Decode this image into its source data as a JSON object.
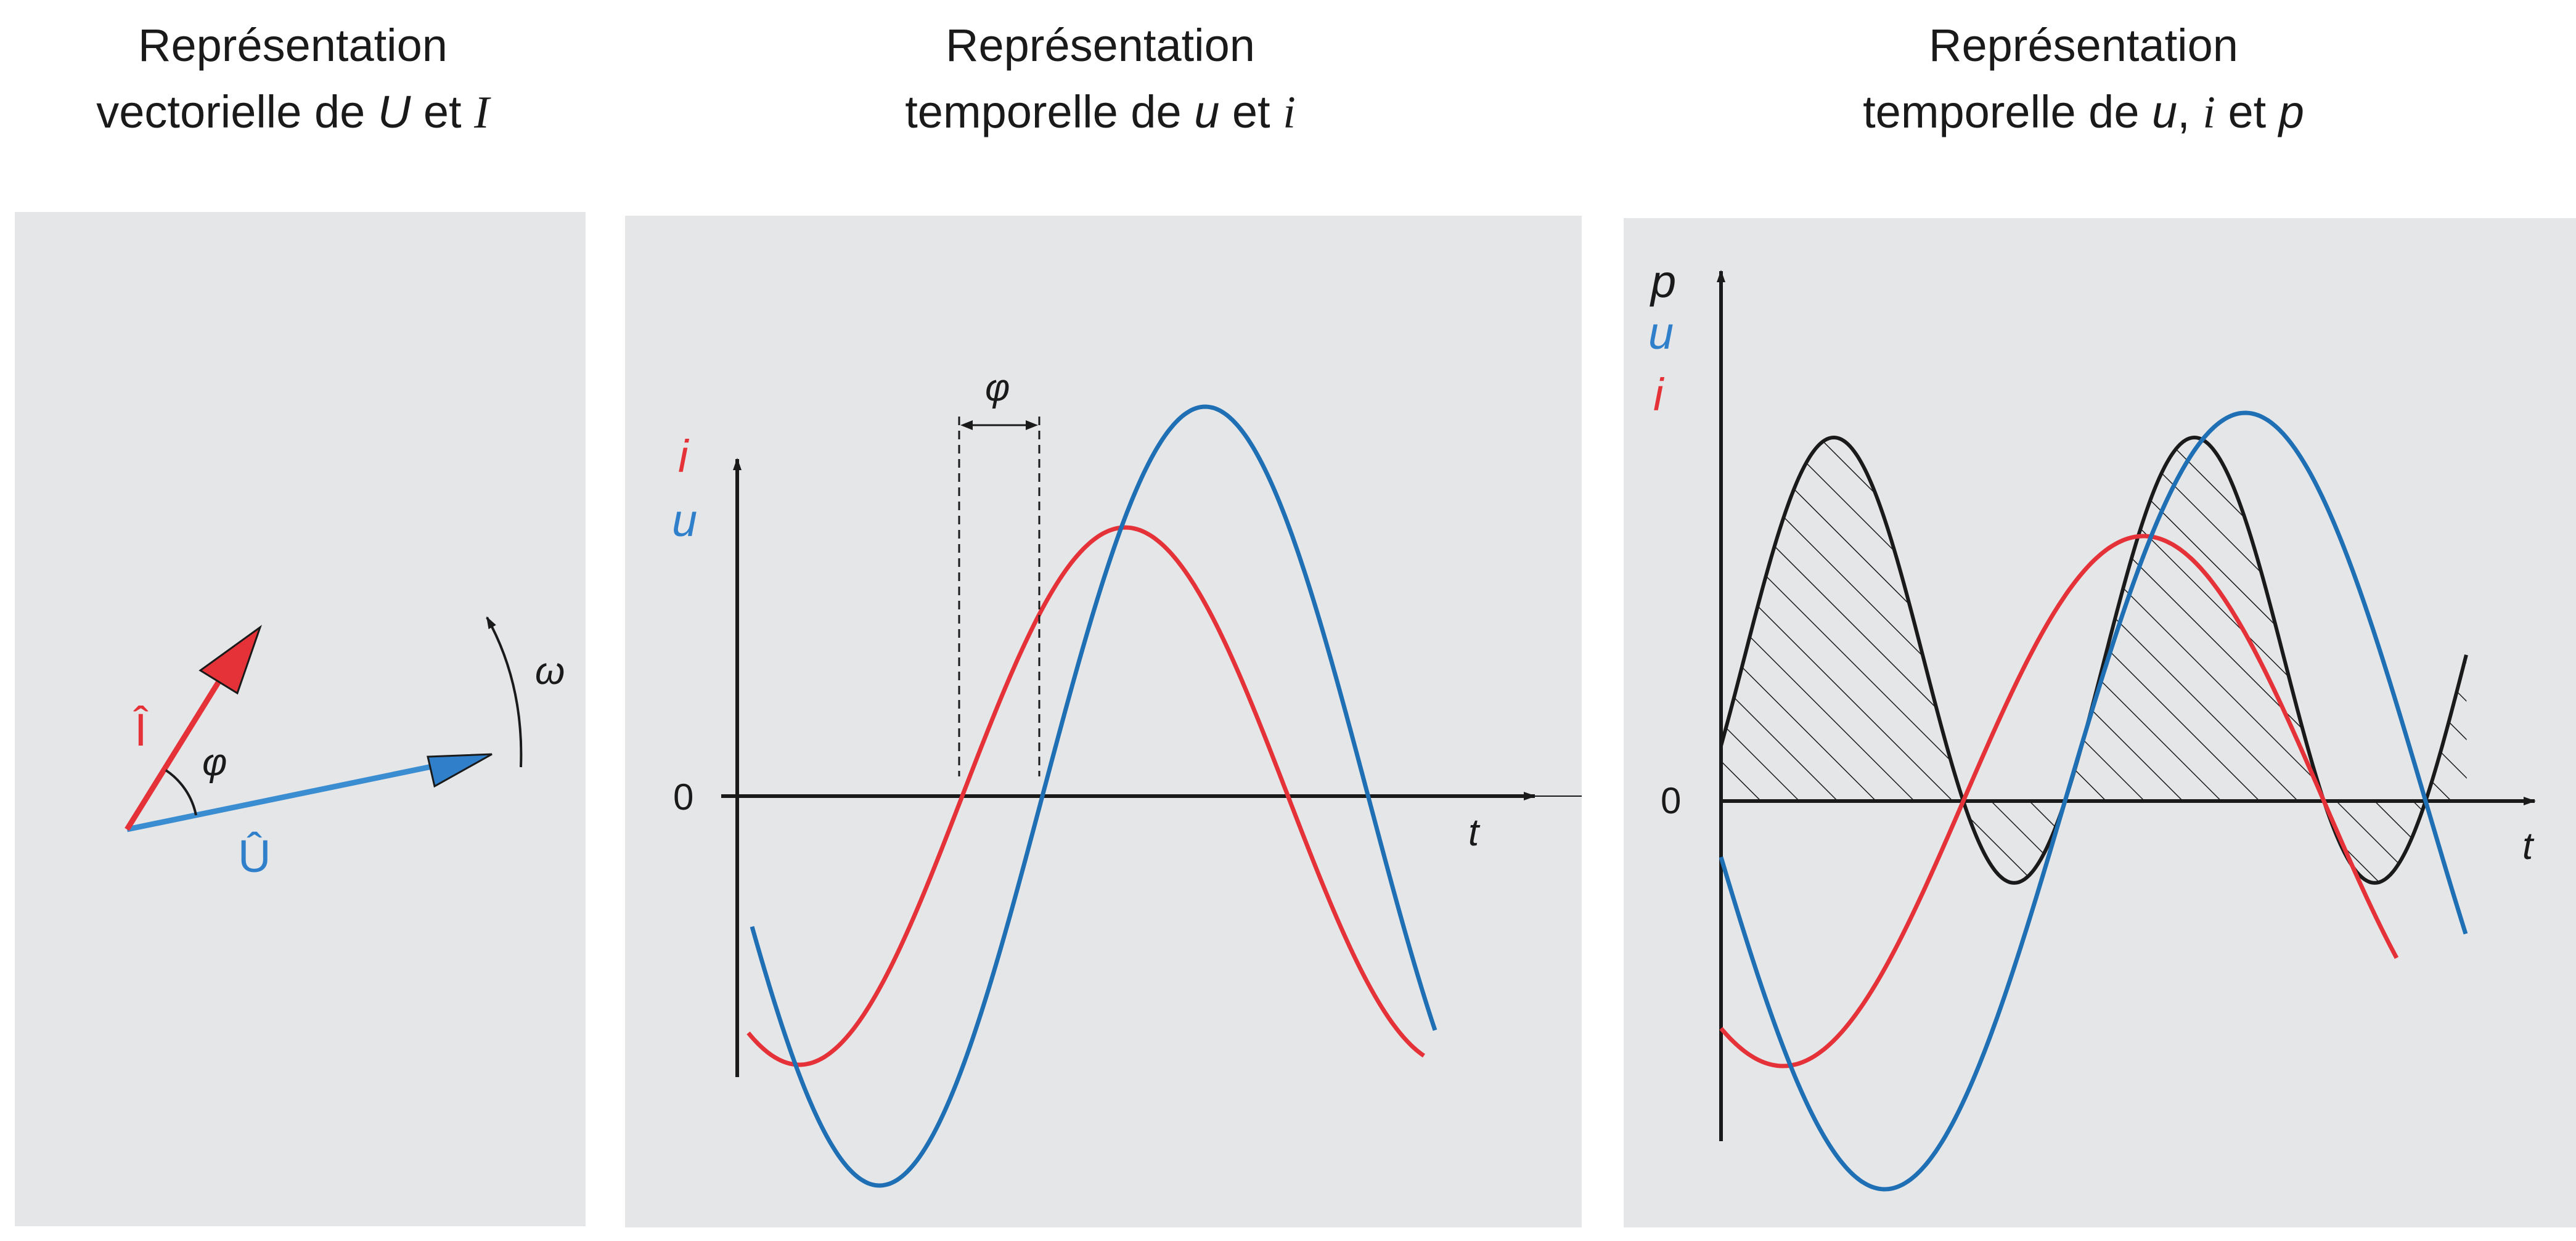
{
  "colors": {
    "background": "#ffffff",
    "panel": "#e5e6e8",
    "voltage": "#1f6fb5",
    "current": "#e53238",
    "power": "#1a1a1a"
  },
  "panel1": {
    "title_line1": "Représentation",
    "title_line2_pre": "vectorielle de ",
    "title_U": "U",
    "title_et": " et ",
    "title_I": "I",
    "labels": {
      "I_hat": "Î",
      "U_hat": "Û",
      "phi": "φ",
      "omega": "ω"
    }
  },
  "panel2": {
    "title_line1": "Représentation",
    "title_line2_pre": "temporelle de ",
    "title_u": "u",
    "title_et": " et ",
    "title_i": "i",
    "labels": {
      "i": "i",
      "u": "u",
      "zero": "0",
      "t": "t",
      "phi": "φ"
    }
  },
  "panel3": {
    "title_line1": "Représentation",
    "title_line2_pre": "temporelle de ",
    "title_u": "u",
    "title_sep": ", ",
    "title_i": "i",
    "title_et": " et ",
    "title_p": "p",
    "labels": {
      "p": "p",
      "u": "u",
      "i": "i",
      "zero": "0",
      "t": "t"
    }
  }
}
